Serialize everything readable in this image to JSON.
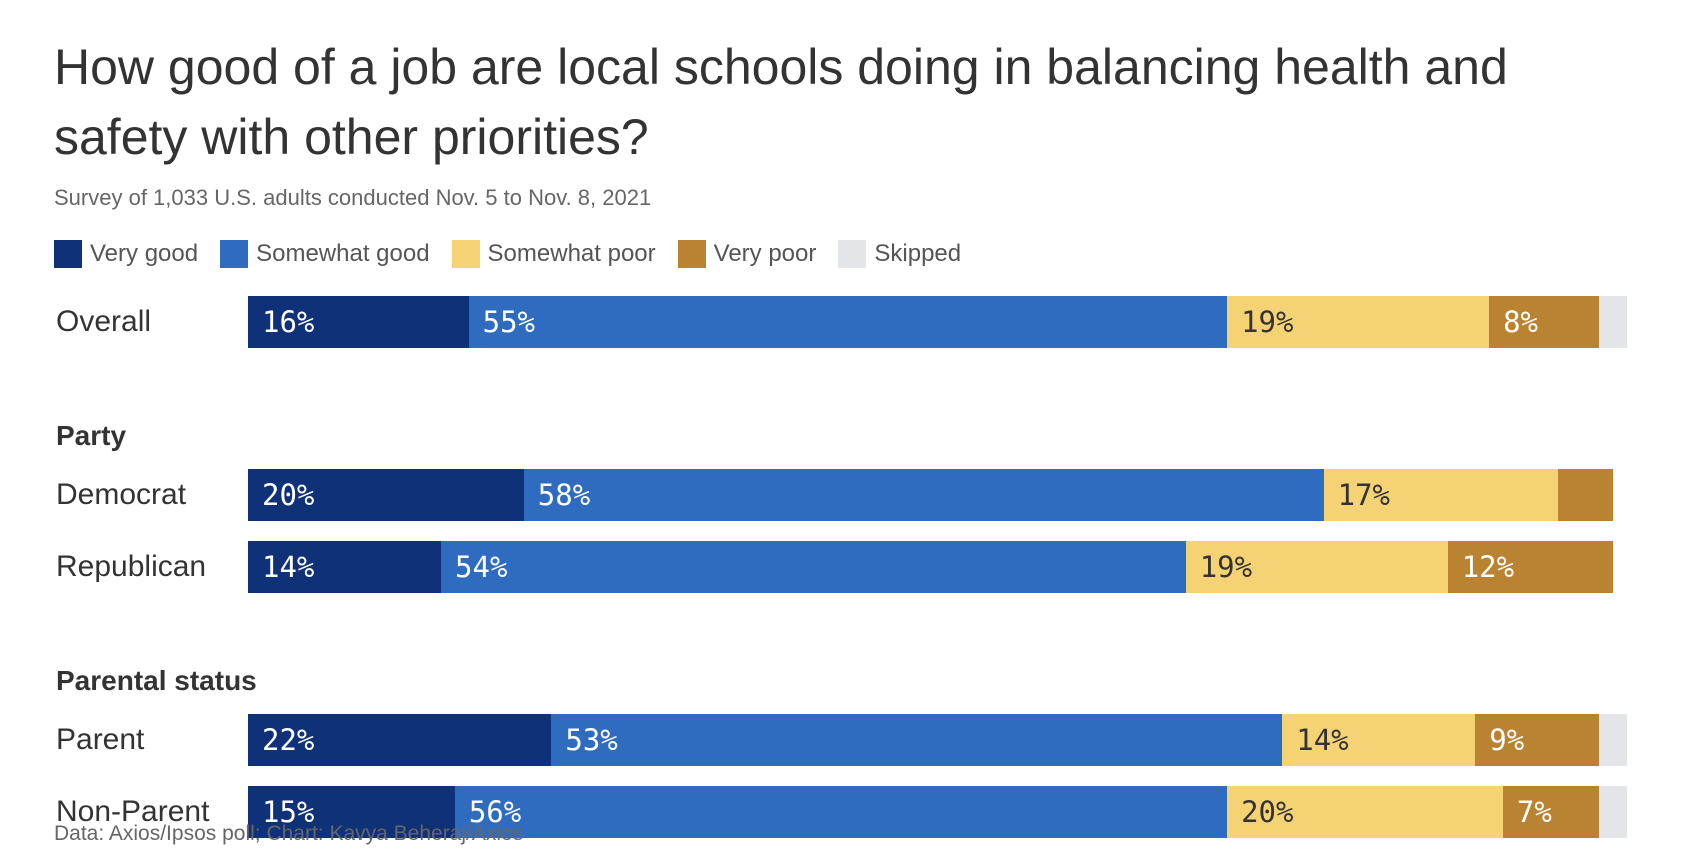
{
  "chart_data": {
    "type": "bar",
    "orientation": "horizontal",
    "stacked": true,
    "title": "How good of a job are local schools doing in balancing health and safety with other priorities?",
    "subtitle": "Survey of 1,033 U.S. adults conducted Nov. 5 to Nov. 8, 2021",
    "source": "Data: Axios/Ipsos poll; Chart: Kavya Beheraj/Axios",
    "legend": [
      {
        "name": "Very good",
        "color": "#0f3178"
      },
      {
        "name": "Somewhat good",
        "color": "#2f6cc0"
      },
      {
        "name": "Somewhat poor",
        "color": "#f5d375"
      },
      {
        "name": "Very poor",
        "color": "#b98331"
      },
      {
        "name": "Skipped",
        "color": "#e4e5e8"
      }
    ],
    "groups": [
      {
        "label": "",
        "rows": [
          {
            "label": "Overall",
            "values": [
              16,
              55,
              19,
              8,
              2
            ],
            "labels": [
              "16%",
              "55%",
              "19%",
              "8%",
              ""
            ]
          }
        ]
      },
      {
        "label": "Party",
        "rows": [
          {
            "label": "Democrat",
            "values": [
              20,
              58,
              17,
              4,
              0
            ],
            "labels": [
              "20%",
              "58%",
              "17%",
              "",
              ""
            ]
          },
          {
            "label": "Republican",
            "values": [
              14,
              54,
              19,
              12,
              0
            ],
            "labels": [
              "14%",
              "54%",
              "19%",
              "12%",
              ""
            ]
          }
        ]
      },
      {
        "label": "Parental status",
        "rows": [
          {
            "label": "Parent",
            "values": [
              22,
              53,
              14,
              9,
              2
            ],
            "labels": [
              "22%",
              "53%",
              "14%",
              "9%",
              ""
            ]
          },
          {
            "label": "Non-Parent",
            "values": [
              15,
              56,
              20,
              7,
              2
            ],
            "labels": [
              "15%",
              "56%",
              "20%",
              "7%",
              ""
            ]
          }
        ]
      }
    ],
    "label_colors": [
      "#ffffff",
      "#ffffff",
      "#333333",
      "#ffffff",
      "#333333"
    ],
    "xlim": [
      0,
      100
    ]
  }
}
